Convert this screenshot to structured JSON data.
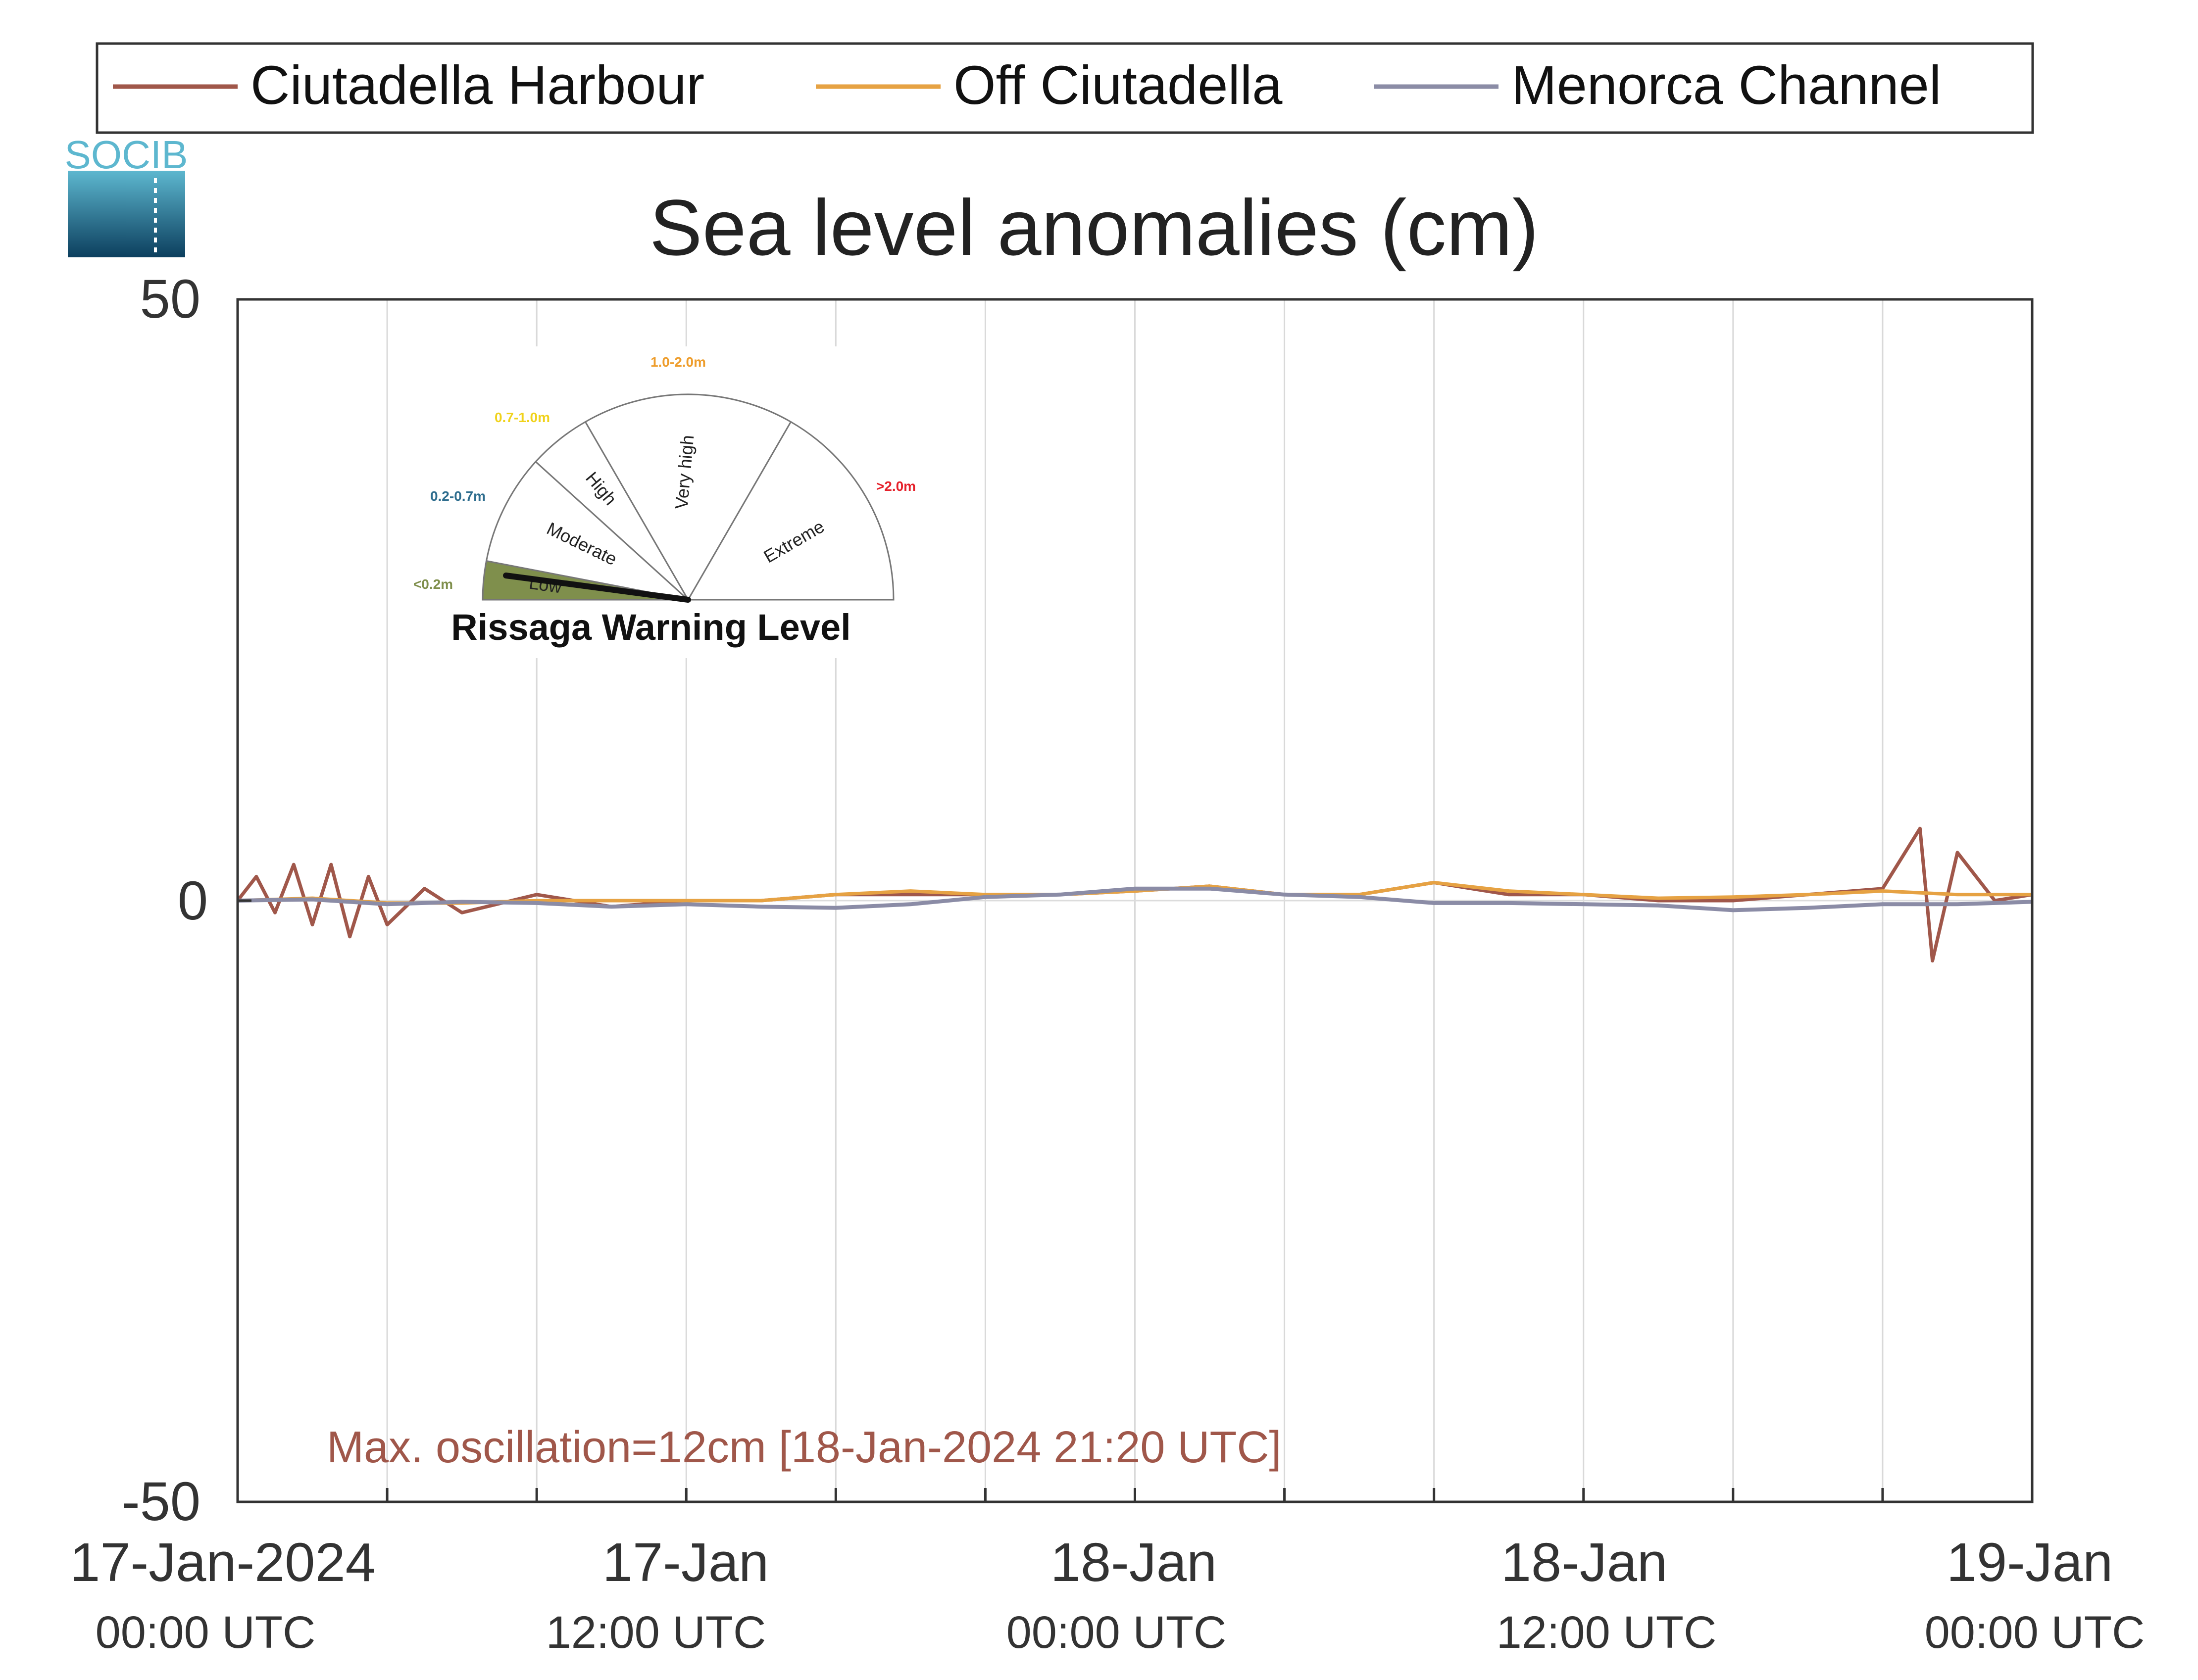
{
  "legend": {
    "placement": "top",
    "items": [
      {
        "label": "Ciutadella Harbour",
        "color": "#a0574a"
      },
      {
        "label": "Off Ciutadella",
        "color": "#e6a243"
      },
      {
        "label": "Menorca Channel",
        "color": "#8b8ca6"
      }
    ]
  },
  "logo": {
    "text": "SOCIB"
  },
  "title": "Sea level anomalies (cm)",
  "y_axis": {
    "ticks": [
      "50",
      "0",
      "-50"
    ]
  },
  "x_axis": {
    "ticks": [
      {
        "line1": "17-Jan-2024",
        "line2": "00:00 UTC"
      },
      {
        "line1": "17-Jan",
        "line2": "12:00 UTC"
      },
      {
        "line1": "18-Jan",
        "line2": "00:00 UTC"
      },
      {
        "line1": "18-Jan",
        "line2": "12:00 UTC"
      },
      {
        "line1": "19-Jan",
        "line2": "00:00 UTC"
      }
    ]
  },
  "gauge": {
    "title": "Rissaga Warning Level",
    "current_level": "Low",
    "sectors": [
      {
        "name": "Low",
        "range": "<0.2m",
        "color": "#7f8f4c"
      },
      {
        "name": "Moderate",
        "range": "0.2-0.7m",
        "color": "#2e6d8e"
      },
      {
        "name": "High",
        "range": "0.7-1.0m",
        "color": "#f0d21b"
      },
      {
        "name": "Very high",
        "range": "1.0-2.0m",
        "color": "#ee9d2c"
      },
      {
        "name": "Extreme",
        "range": ">2.0m",
        "color": "#e5202a"
      }
    ]
  },
  "annotation": "Max. oscillation=12cm [18-Jan-2024 21:20 UTC]",
  "annotation_color": "#a0574a",
  "chart_data": {
    "type": "line",
    "title": "Sea level anomalies (cm)",
    "xlabel": "",
    "ylabel": "",
    "ylim": [
      -50,
      50
    ],
    "xlim": [
      "2024-01-17 00:00",
      "2024-01-19 00:00"
    ],
    "grid": "vertical",
    "legend_placement": "top",
    "x_tick_labels": [
      "17-Jan-2024 00:00 UTC",
      "17-Jan 12:00 UTC",
      "18-Jan 00:00 UTC",
      "18-Jan 12:00 UTC",
      "19-Jan 00:00 UTC"
    ],
    "series": [
      {
        "name": "Ciutadella Harbour",
        "color": "#a0574a",
        "points": [
          [
            "2024-01-17 00:00",
            0
          ],
          [
            "2024-01-17 00:30",
            2
          ],
          [
            "2024-01-17 01:00",
            -1
          ],
          [
            "2024-01-17 01:30",
            3
          ],
          [
            "2024-01-17 02:00",
            -2
          ],
          [
            "2024-01-17 02:30",
            3
          ],
          [
            "2024-01-17 03:00",
            -3
          ],
          [
            "2024-01-17 03:30",
            2
          ],
          [
            "2024-01-17 04:00",
            -2
          ],
          [
            "2024-01-17 05:00",
            1
          ],
          [
            "2024-01-17 06:00",
            -1
          ],
          [
            "2024-01-17 08:00",
            0.5
          ],
          [
            "2024-01-17 10:00",
            -0.5
          ],
          [
            "2024-01-17 12:00",
            0
          ],
          [
            "2024-01-17 14:00",
            0
          ],
          [
            "2024-01-17 16:00",
            0.5
          ],
          [
            "2024-01-17 18:00",
            0.5
          ],
          [
            "2024-01-17 20:00",
            0.5
          ],
          [
            "2024-01-17 22:00",
            0.5
          ],
          [
            "2024-01-18 00:00",
            0.8
          ],
          [
            "2024-01-18 02:00",
            1.2
          ],
          [
            "2024-01-18 04:00",
            0.5
          ],
          [
            "2024-01-18 06:00",
            0.5
          ],
          [
            "2024-01-18 08:00",
            1.5
          ],
          [
            "2024-01-18 10:00",
            0.5
          ],
          [
            "2024-01-18 12:00",
            0.5
          ],
          [
            "2024-01-18 14:00",
            0
          ],
          [
            "2024-01-18 16:00",
            0
          ],
          [
            "2024-01-18 18:00",
            0.5
          ],
          [
            "2024-01-18 20:00",
            1
          ],
          [
            "2024-01-18 21:00",
            6
          ],
          [
            "2024-01-18 21:20",
            -5
          ],
          [
            "2024-01-18 22:00",
            4
          ],
          [
            "2024-01-18 23:00",
            0
          ],
          [
            "2024-01-19 00:00",
            0.5
          ]
        ]
      },
      {
        "name": "Off Ciutadella",
        "color": "#e6a243",
        "points": [
          [
            "2024-01-17 00:00",
            0
          ],
          [
            "2024-01-17 02:00",
            0.2
          ],
          [
            "2024-01-17 04:00",
            -0.2
          ],
          [
            "2024-01-17 06:00",
            -0.2
          ],
          [
            "2024-01-17 08:00",
            0
          ],
          [
            "2024-01-17 10:00",
            0
          ],
          [
            "2024-01-17 12:00",
            0
          ],
          [
            "2024-01-17 14:00",
            0
          ],
          [
            "2024-01-17 16:00",
            0.5
          ],
          [
            "2024-01-17 18:00",
            0.8
          ],
          [
            "2024-01-17 20:00",
            0.5
          ],
          [
            "2024-01-17 22:00",
            0.5
          ],
          [
            "2024-01-18 00:00",
            0.8
          ],
          [
            "2024-01-18 02:00",
            1.2
          ],
          [
            "2024-01-18 04:00",
            0.5
          ],
          [
            "2024-01-18 06:00",
            0.5
          ],
          [
            "2024-01-18 08:00",
            1.5
          ],
          [
            "2024-01-18 10:00",
            0.8
          ],
          [
            "2024-01-18 12:00",
            0.5
          ],
          [
            "2024-01-18 14:00",
            0.2
          ],
          [
            "2024-01-18 16:00",
            0.3
          ],
          [
            "2024-01-18 18:00",
            0.5
          ],
          [
            "2024-01-18 20:00",
            0.8
          ],
          [
            "2024-01-18 22:00",
            0.5
          ],
          [
            "2024-01-19 00:00",
            0.5
          ]
        ]
      },
      {
        "name": "Menorca Channel",
        "color": "#8b8ca6",
        "points": [
          [
            "2024-01-17 00:00",
            0
          ],
          [
            "2024-01-17 02:00",
            0.1
          ],
          [
            "2024-01-17 04:00",
            -0.3
          ],
          [
            "2024-01-17 06:00",
            -0.1
          ],
          [
            "2024-01-17 08:00",
            -0.2
          ],
          [
            "2024-01-17 10:00",
            -0.5
          ],
          [
            "2024-01-17 12:00",
            -0.3
          ],
          [
            "2024-01-17 14:00",
            -0.5
          ],
          [
            "2024-01-17 16:00",
            -0.6
          ],
          [
            "2024-01-17 18:00",
            -0.3
          ],
          [
            "2024-01-17 20:00",
            0.3
          ],
          [
            "2024-01-17 22:00",
            0.5
          ],
          [
            "2024-01-18 00:00",
            1.0
          ],
          [
            "2024-01-18 02:00",
            1.0
          ],
          [
            "2024-01-18 04:00",
            0.5
          ],
          [
            "2024-01-18 06:00",
            0.3
          ],
          [
            "2024-01-18 08:00",
            -0.2
          ],
          [
            "2024-01-18 10:00",
            -0.2
          ],
          [
            "2024-01-18 12:00",
            -0.3
          ],
          [
            "2024-01-18 14:00",
            -0.4
          ],
          [
            "2024-01-18 16:00",
            -0.8
          ],
          [
            "2024-01-18 18:00",
            -0.6
          ],
          [
            "2024-01-18 20:00",
            -0.3
          ],
          [
            "2024-01-18 22:00",
            -0.3
          ],
          [
            "2024-01-19 00:00",
            -0.1
          ]
        ]
      }
    ]
  }
}
